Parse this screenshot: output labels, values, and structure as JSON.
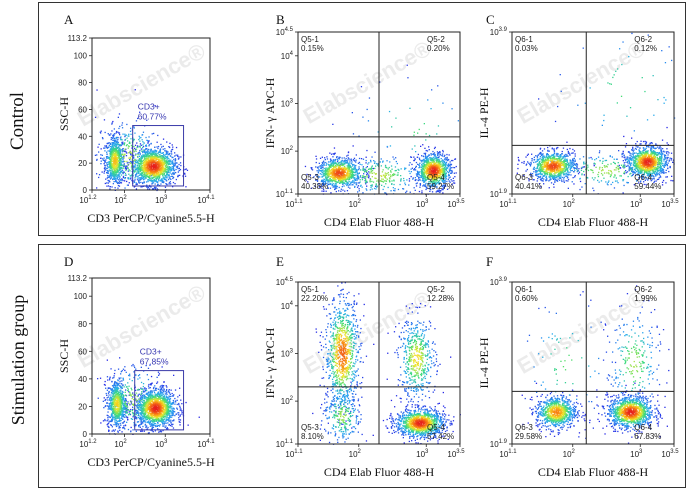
{
  "rows": [
    {
      "label": "Control"
    },
    {
      "label": "Stimulation group"
    }
  ],
  "watermark": "Elabscience®",
  "colors": {
    "gate": "#3a3aa8",
    "quad": "#222222",
    "gateText": "#3535b0"
  },
  "chart_data": [
    {
      "id": "A",
      "type": "scatter",
      "panel_label": "A",
      "style": "gate",
      "xlabel": "CD3 PerCP/Cyanine5.5-H",
      "ylabel": "SSC-H",
      "xlim": [
        1.2,
        4.1
      ],
      "ylim": [
        0,
        113.2
      ],
      "xscale": "log10",
      "yscale": "linear",
      "x_ticks": [
        {
          "v": 1.2,
          "l": "10",
          "e": "1.2"
        },
        {
          "v": 2,
          "l": "10",
          "e": "2"
        },
        {
          "v": 3,
          "l": "10",
          "e": "3"
        },
        {
          "v": 4.1,
          "l": "10",
          "e": "4.1"
        }
      ],
      "y_ticks": [
        {
          "v": 0,
          "l": "0"
        },
        {
          "v": 20,
          "l": "20"
        },
        {
          "v": 40,
          "l": "40"
        },
        {
          "v": 60,
          "l": "60"
        },
        {
          "v": 80,
          "l": "80"
        },
        {
          "v": 100,
          "l": "100"
        },
        {
          "v": 113.2,
          "l": "113.2"
        }
      ],
      "gate": {
        "name": "CD3+",
        "value": "60.77%",
        "x": [
          2.2,
          3.45
        ],
        "y": [
          3,
          48
        ]
      },
      "clusters": [
        {
          "x": 1.75,
          "y": 22,
          "sx": 0.12,
          "sy": 9,
          "n": 700
        },
        {
          "x": 2.7,
          "y": 18,
          "sx": 0.28,
          "sy": 7,
          "n": 1300
        },
        {
          "x": 2.1,
          "y": 25,
          "sx": 0.4,
          "sy": 14,
          "n": 350
        }
      ]
    },
    {
      "id": "B",
      "type": "scatter",
      "panel_label": "B",
      "style": "quad",
      "xlabel": "CD4 Elab Fluor 488-H",
      "ylabel": "IFN- γ APC-H",
      "xlim": [
        1.1,
        3.5
      ],
      "ylim": [
        1.1,
        4.5
      ],
      "xscale": "log10",
      "yscale": "log10",
      "x_ticks": [
        {
          "v": 1.1,
          "l": "10",
          "e": "1.1"
        },
        {
          "v": 2,
          "l": "10",
          "e": "2"
        },
        {
          "v": 3,
          "l": "10",
          "e": "3"
        },
        {
          "v": 3.5,
          "l": "10",
          "e": "3.5"
        }
      ],
      "y_ticks": [
        {
          "v": 1.1,
          "l": "10",
          "e": "1.1"
        },
        {
          "v": 2,
          "l": "10",
          "e": "2"
        },
        {
          "v": 3,
          "l": "10",
          "e": "3"
        },
        {
          "v": 4,
          "l": "10",
          "e": "4"
        },
        {
          "v": 4.5,
          "l": "10",
          "e": "4.5"
        }
      ],
      "divider": {
        "x": 2.3,
        "y": 2.3
      },
      "quadrants": [
        {
          "name": "Q5-1",
          "value": "0.15%",
          "pos": "tl"
        },
        {
          "name": "Q5-2",
          "value": "0.20%",
          "pos": "tr"
        },
        {
          "name": "Q5-3",
          "value": "40.38%",
          "pos": "bl"
        },
        {
          "name": "Q5-4",
          "value": "59.27%",
          "pos": "br"
        }
      ],
      "clusters": [
        {
          "x": 1.7,
          "y": 1.55,
          "sx": 0.17,
          "sy": 0.16,
          "n": 900
        },
        {
          "x": 3.1,
          "y": 1.6,
          "sx": 0.13,
          "sy": 0.18,
          "n": 1000
        },
        {
          "x": 2.3,
          "y": 1.5,
          "sx": 0.35,
          "sy": 0.22,
          "n": 300
        },
        {
          "x": 2.8,
          "y": 2.5,
          "sx": 0.5,
          "sy": 0.5,
          "n": 45
        }
      ]
    },
    {
      "id": "C",
      "type": "scatter",
      "panel_label": "C",
      "style": "quad",
      "xlabel": "CD4 Elab Fluor 488-H",
      "ylabel": "IL-4 PE-H",
      "xlim": [
        1.1,
        3.5
      ],
      "ylim": [
        1.9,
        3.9
      ],
      "xscale": "log10",
      "yscale": "log10",
      "x_ticks": [
        {
          "v": 1.1,
          "l": "10",
          "e": "1.1"
        },
        {
          "v": 2,
          "l": "10",
          "e": "2"
        },
        {
          "v": 3,
          "l": "10",
          "e": "3"
        },
        {
          "v": 3.5,
          "l": "10",
          "e": "3.5"
        }
      ],
      "y_ticks": [
        {
          "v": 1.9,
          "l": "10",
          "e": "1.9"
        },
        {
          "v": 3.9,
          "l": "10",
          "e": "3.9"
        }
      ],
      "divider": {
        "x": 2.2,
        "y": 2.5
      },
      "quadrants": [
        {
          "name": "Q6-1",
          "value": "0.03%",
          "pos": "tl"
        },
        {
          "name": "Q6-2",
          "value": "0.12%",
          "pos": "tr"
        },
        {
          "name": "Q6-3",
          "value": "40.41%",
          "pos": "bl"
        },
        {
          "name": "Q6-4",
          "value": "59.44%",
          "pos": "br"
        }
      ],
      "clusters": [
        {
          "x": 1.7,
          "y": 2.25,
          "sx": 0.17,
          "sy": 0.09,
          "n": 900
        },
        {
          "x": 3.1,
          "y": 2.3,
          "sx": 0.15,
          "sy": 0.1,
          "n": 1000
        },
        {
          "x": 2.5,
          "y": 2.2,
          "sx": 0.45,
          "sy": 0.12,
          "n": 250
        },
        {
          "x": 2.8,
          "y": 3.2,
          "sx": 0.55,
          "sy": 0.4,
          "n": 60
        }
      ]
    },
    {
      "id": "D",
      "type": "scatter",
      "panel_label": "D",
      "style": "gate",
      "xlabel": "CD3 PerCP/Cyanine5.5-H",
      "ylabel": "SSC-H",
      "xlim": [
        1.2,
        4.1
      ],
      "ylim": [
        0,
        113.2
      ],
      "xscale": "log10",
      "yscale": "linear",
      "x_ticks": [
        {
          "v": 1.2,
          "l": "10",
          "e": "1.2"
        },
        {
          "v": 2,
          "l": "10",
          "e": "2"
        },
        {
          "v": 3,
          "l": "10",
          "e": "3"
        },
        {
          "v": 4.1,
          "l": "10",
          "e": "4.1"
        }
      ],
      "y_ticks": [
        {
          "v": 0,
          "l": "0"
        },
        {
          "v": 20,
          "l": "20"
        },
        {
          "v": 40,
          "l": "40"
        },
        {
          "v": 60,
          "l": "60"
        },
        {
          "v": 80,
          "l": "80"
        },
        {
          "v": 100,
          "l": "100"
        },
        {
          "v": 113.2,
          "l": "113.2"
        }
      ],
      "gate": {
        "name": "CD3+",
        "value": "67.85%",
        "x": [
          2.25,
          3.45
        ],
        "y": [
          3,
          46
        ]
      },
      "clusters": [
        {
          "x": 1.8,
          "y": 22,
          "sx": 0.12,
          "sy": 9,
          "n": 650
        },
        {
          "x": 2.75,
          "y": 19,
          "sx": 0.25,
          "sy": 7,
          "n": 1400
        },
        {
          "x": 2.2,
          "y": 25,
          "sx": 0.4,
          "sy": 13,
          "n": 300
        }
      ]
    },
    {
      "id": "E",
      "type": "scatter",
      "panel_label": "E",
      "style": "quad",
      "xlabel": "CD4 Elab Fluor 488-H",
      "ylabel": "IFN- γ APC-H",
      "xlim": [
        1.1,
        3.5
      ],
      "ylim": [
        1.1,
        4.5
      ],
      "xscale": "log10",
      "yscale": "log10",
      "x_ticks": [
        {
          "v": 1.1,
          "l": "10",
          "e": "1.1"
        },
        {
          "v": 2,
          "l": "10",
          "e": "2"
        },
        {
          "v": 3,
          "l": "10",
          "e": "3"
        },
        {
          "v": 3.5,
          "l": "10",
          "e": "3.5"
        }
      ],
      "y_ticks": [
        {
          "v": 1.1,
          "l": "10",
          "e": "1.1"
        },
        {
          "v": 2,
          "l": "10",
          "e": "2"
        },
        {
          "v": 3,
          "l": "10",
          "e": "3"
        },
        {
          "v": 4,
          "l": "10",
          "e": "4"
        },
        {
          "v": 4.5,
          "l": "10",
          "e": "4.5"
        }
      ],
      "divider": {
        "x": 2.3,
        "y": 2.3
      },
      "quadrants": [
        {
          "name": "Q5-1",
          "value": "22.20%",
          "pos": "tl"
        },
        {
          "name": "Q5-2",
          "value": "12.28%",
          "pos": "tr"
        },
        {
          "name": "Q5-3",
          "value": "8.10%",
          "pos": "bl"
        },
        {
          "name": "Q5-4",
          "value": "57.42%",
          "pos": "br"
        }
      ],
      "clusters": [
        {
          "x": 1.75,
          "y": 3.0,
          "sx": 0.13,
          "sy": 0.6,
          "n": 900
        },
        {
          "x": 2.85,
          "y": 2.9,
          "sx": 0.14,
          "sy": 0.45,
          "n": 500
        },
        {
          "x": 2.9,
          "y": 1.55,
          "sx": 0.18,
          "sy": 0.15,
          "n": 1100
        },
        {
          "x": 1.75,
          "y": 1.7,
          "sx": 0.15,
          "sy": 0.3,
          "n": 250
        }
      ]
    },
    {
      "id": "F",
      "type": "scatter",
      "panel_label": "F",
      "style": "quad",
      "xlabel": "CD4 Elab Fluor 488-H",
      "ylabel": "IL-4 PE-H",
      "xlim": [
        1.1,
        3.5
      ],
      "ylim": [
        1.9,
        3.9
      ],
      "xscale": "log10",
      "yscale": "log10",
      "x_ticks": [
        {
          "v": 1.1,
          "l": "10",
          "e": "1.1"
        },
        {
          "v": 2,
          "l": "10",
          "e": "2"
        },
        {
          "v": 3,
          "l": "10",
          "e": "3"
        },
        {
          "v": 3.5,
          "l": "10",
          "e": "3.5"
        }
      ],
      "y_ticks": [
        {
          "v": 1.9,
          "l": "10",
          "e": "1.9"
        },
        {
          "v": 3.9,
          "l": "10",
          "e": "3.9"
        }
      ],
      "divider": {
        "x": 2.2,
        "y": 2.55
      },
      "quadrants": [
        {
          "name": "Q6-1",
          "value": "0.60%",
          "pos": "tl"
        },
        {
          "name": "Q6-2",
          "value": "1.99%",
          "pos": "tr"
        },
        {
          "name": "Q6-3",
          "value": "29.58%",
          "pos": "bl"
        },
        {
          "name": "Q6-4",
          "value": "67.83%",
          "pos": "br"
        }
      ],
      "clusters": [
        {
          "x": 1.75,
          "y": 2.3,
          "sx": 0.15,
          "sy": 0.1,
          "n": 800
        },
        {
          "x": 2.85,
          "y": 2.3,
          "sx": 0.17,
          "sy": 0.1,
          "n": 1100
        },
        {
          "x": 2.9,
          "y": 2.9,
          "sx": 0.2,
          "sy": 0.35,
          "n": 250
        },
        {
          "x": 1.9,
          "y": 2.9,
          "sx": 0.35,
          "sy": 0.4,
          "n": 80
        }
      ]
    }
  ]
}
